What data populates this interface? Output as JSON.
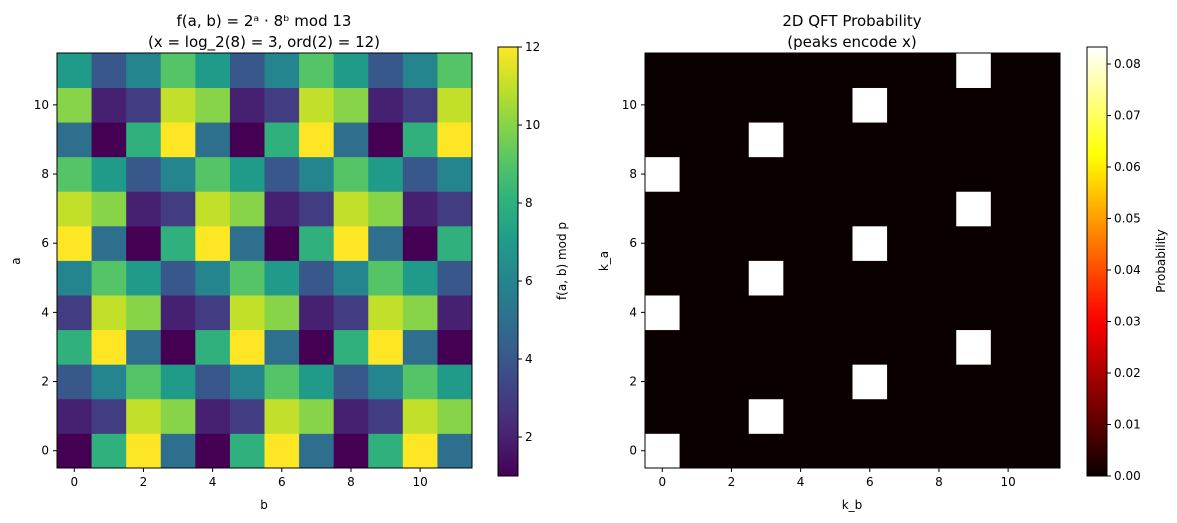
{
  "chart_data": [
    {
      "type": "heatmap",
      "title_line1": "f(a, b) = 2ᵃ · 8ᵇ mod 13",
      "title_line2": "(x = log_2(8) = 3, ord(2) = 12)",
      "xlabel": "b",
      "ylabel": "a",
      "xticks": [
        0,
        2,
        4,
        6,
        8,
        10
      ],
      "yticks": [
        0,
        2,
        4,
        6,
        8,
        10
      ],
      "colormap": "viridis",
      "colorbar_label": "f(a, b) mod p",
      "colorbar_ticks": [
        2,
        4,
        6,
        8,
        10,
        12
      ],
      "vmin": 1,
      "vmax": 12,
      "z": [
        [
          1,
          8,
          12,
          5,
          1,
          8,
          12,
          5,
          1,
          8,
          12,
          5
        ],
        [
          2,
          3,
          11,
          10,
          2,
          3,
          11,
          10,
          2,
          3,
          11,
          10
        ],
        [
          4,
          6,
          9,
          7,
          4,
          6,
          9,
          7,
          4,
          6,
          9,
          7
        ],
        [
          8,
          12,
          5,
          1,
          8,
          12,
          5,
          1,
          8,
          12,
          5,
          1
        ],
        [
          3,
          11,
          10,
          2,
          3,
          11,
          10,
          2,
          3,
          11,
          10,
          2
        ],
        [
          6,
          9,
          7,
          4,
          6,
          9,
          7,
          4,
          6,
          9,
          7,
          4
        ],
        [
          12,
          5,
          1,
          8,
          12,
          5,
          1,
          8,
          12,
          5,
          1,
          8
        ],
        [
          11,
          10,
          2,
          3,
          11,
          10,
          2,
          3,
          11,
          10,
          2,
          3
        ],
        [
          9,
          7,
          4,
          6,
          9,
          7,
          4,
          6,
          9,
          7,
          4,
          6
        ],
        [
          5,
          1,
          8,
          12,
          5,
          1,
          8,
          12,
          5,
          1,
          8,
          12
        ],
        [
          10,
          2,
          3,
          11,
          10,
          2,
          3,
          11,
          10,
          2,
          3,
          11
        ],
        [
          7,
          4,
          6,
          9,
          7,
          4,
          6,
          9,
          7,
          4,
          6,
          9
        ]
      ]
    },
    {
      "type": "heatmap",
      "title_line1": "2D QFT Probability",
      "title_line2": "(peaks encode x)",
      "xlabel": "k_b",
      "ylabel": "k_a",
      "xticks": [
        0,
        2,
        4,
        6,
        8,
        10
      ],
      "yticks": [
        0,
        2,
        4,
        6,
        8,
        10
      ],
      "colormap": "hot",
      "colorbar_label": "Probability",
      "colorbar_ticks": [
        "0.00",
        "0.01",
        "0.02",
        "0.03",
        "0.04",
        "0.05",
        "0.06",
        "0.07",
        "0.08"
      ],
      "vmin": 0,
      "vmax": 0.0833,
      "peak_value": 0.0833,
      "peaks": [
        [
          0,
          0
        ],
        [
          1,
          3
        ],
        [
          2,
          6
        ],
        [
          3,
          9
        ],
        [
          4,
          0
        ],
        [
          5,
          3
        ],
        [
          6,
          6
        ],
        [
          7,
          9
        ],
        [
          8,
          0
        ],
        [
          9,
          3
        ],
        [
          10,
          6
        ],
        [
          11,
          9
        ]
      ]
    }
  ]
}
